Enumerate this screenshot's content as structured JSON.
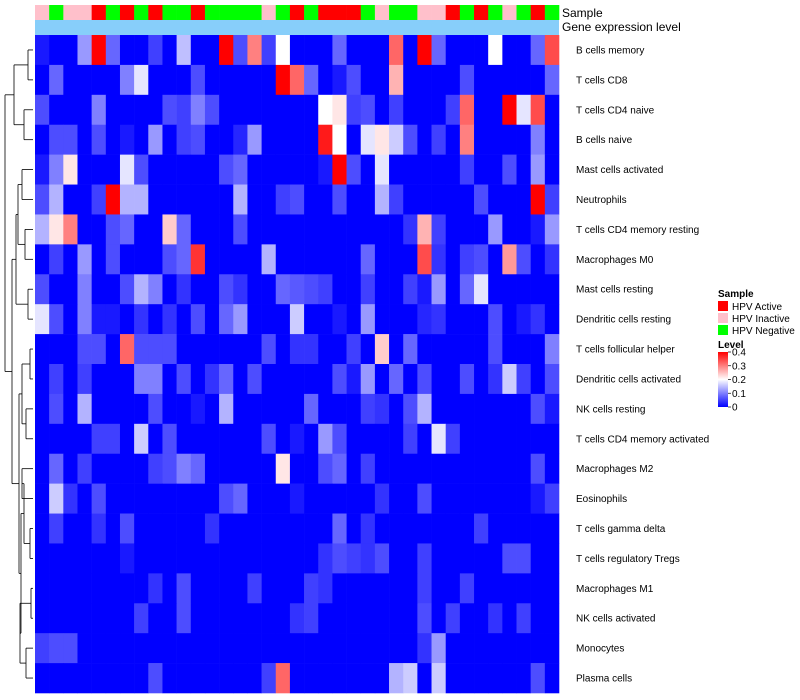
{
  "chart_data": {
    "type": "heatmap",
    "annotation_tracks": [
      {
        "label": "Sample"
      },
      {
        "label": "Gene expression level"
      }
    ],
    "sample_groups": [
      "Inactive",
      "Negative",
      "Inactive",
      "Inactive",
      "Active",
      "Negative",
      "Active",
      "Negative",
      "Active",
      "Negative",
      "Negative",
      "Active",
      "Negative",
      "Negative",
      "Negative",
      "Negative",
      "Inactive",
      "Negative",
      "Active",
      "Negative",
      "Active",
      "Active",
      "Active",
      "Negative",
      "Inactive",
      "Negative",
      "Negative",
      "Inactive",
      "Inactive",
      "Active",
      "Negative",
      "Active",
      "Negative",
      "Inactive",
      "Negative",
      "Active",
      "Negative"
    ],
    "rows": [
      "B cells memory",
      "T cells CD8",
      "T cells CD4 naive",
      "B cells naive",
      "Mast cells activated",
      "Neutrophils",
      "T cells CD4 memory resting",
      "Macrophages M0",
      "Mast cells resting",
      "Dendritic cells resting",
      "T cells follicular helper",
      "Dendritic cells activated",
      "NK cells resting",
      "T cells CD4 memory activated",
      "Macrophages M2",
      "Eosinophils",
      "T cells gamma delta",
      "T cells regulatory  Tregs",
      "Macrophages M1",
      "NK cells activated",
      "Monocytes",
      "Plasma cells"
    ],
    "values": [
      [
        0.02,
        0.0,
        0.0,
        0.12,
        0.4,
        0.08,
        0.0,
        0.0,
        0.05,
        0.0,
        0.15,
        0.0,
        0.0,
        0.4,
        0.06,
        0.3,
        0.05,
        0.2,
        0.0,
        0.0,
        0.0,
        0.08,
        0.0,
        0.0,
        0.0,
        0.32,
        0.0,
        0.4,
        0.08,
        0.0,
        0.0,
        0.0,
        0.2,
        0.0,
        0.0,
        0.08,
        0.34
      ],
      [
        0.0,
        0.08,
        0.0,
        0.0,
        0.0,
        0.0,
        0.1,
        0.18,
        0.0,
        0.0,
        0.0,
        0.06,
        0.0,
        0.0,
        0.0,
        0.0,
        0.0,
        0.4,
        0.32,
        0.08,
        0.0,
        0.02,
        0.06,
        0.0,
        0.0,
        0.26,
        0.0,
        0.0,
        0.0,
        0.0,
        0.06,
        0.0,
        0.0,
        0.0,
        0.0,
        0.0,
        0.08
      ],
      [
        0.06,
        0.0,
        0.0,
        0.0,
        0.1,
        0.0,
        0.0,
        0.0,
        0.0,
        0.06,
        0.05,
        0.1,
        0.06,
        0.0,
        0.0,
        0.0,
        0.0,
        0.0,
        0.0,
        0.0,
        0.2,
        0.22,
        0.05,
        0.06,
        0.0,
        0.05,
        0.0,
        0.0,
        0.0,
        0.05,
        0.32,
        0.0,
        0.0,
        0.4,
        0.18,
        0.34,
        0.0
      ],
      [
        0.0,
        0.06,
        0.06,
        0.0,
        0.06,
        0.0,
        0.02,
        0.0,
        0.12,
        0.0,
        0.05,
        0.06,
        0.0,
        0.0,
        0.03,
        0.12,
        0.0,
        0.0,
        0.0,
        0.0,
        0.38,
        0.2,
        0.0,
        0.18,
        0.22,
        0.16,
        0.06,
        0.0,
        0.05,
        0.0,
        0.3,
        0.0,
        0.0,
        0.0,
        0.0,
        0.1,
        0.0
      ],
      [
        0.02,
        0.1,
        0.22,
        0.0,
        0.0,
        0.0,
        0.18,
        0.06,
        0.0,
        0.0,
        0.0,
        0.0,
        0.0,
        0.06,
        0.08,
        0.0,
        0.0,
        0.0,
        0.0,
        0.0,
        0.02,
        0.4,
        0.06,
        0.0,
        0.18,
        0.0,
        0.0,
        0.0,
        0.0,
        0.0,
        0.05,
        0.0,
        0.0,
        0.06,
        0.0,
        0.12,
        0.0
      ],
      [
        0.06,
        0.14,
        0.0,
        0.0,
        0.05,
        0.4,
        0.14,
        0.14,
        0.0,
        0.0,
        0.0,
        0.0,
        0.0,
        0.0,
        0.14,
        0.0,
        0.0,
        0.05,
        0.06,
        0.0,
        0.0,
        0.06,
        0.0,
        0.0,
        0.14,
        0.05,
        0.0,
        0.0,
        0.0,
        0.0,
        0.0,
        0.06,
        0.0,
        0.0,
        0.0,
        0.4,
        0.05
      ],
      [
        0.14,
        0.22,
        0.3,
        0.0,
        0.0,
        0.06,
        0.08,
        0.0,
        0.0,
        0.24,
        0.08,
        0.0,
        0.0,
        0.0,
        0.06,
        0.0,
        0.0,
        0.0,
        0.0,
        0.0,
        0.0,
        0.0,
        0.0,
        0.0,
        0.0,
        0.0,
        0.04,
        0.26,
        0.05,
        0.0,
        0.0,
        0.0,
        0.12,
        0.0,
        0.0,
        0.02,
        0.12
      ],
      [
        0.0,
        0.05,
        0.0,
        0.12,
        0.0,
        0.06,
        0.0,
        0.0,
        0.0,
        0.06,
        0.08,
        0.36,
        0.0,
        0.0,
        0.0,
        0.0,
        0.14,
        0.0,
        0.0,
        0.0,
        0.0,
        0.0,
        0.0,
        0.08,
        0.0,
        0.0,
        0.0,
        0.34,
        0.04,
        0.0,
        0.05,
        0.06,
        0.0,
        0.28,
        0.06,
        0.0,
        0.04
      ],
      [
        0.06,
        0.0,
        0.0,
        0.1,
        0.0,
        0.0,
        0.06,
        0.14,
        0.1,
        0.0,
        0.04,
        0.0,
        0.0,
        0.06,
        0.04,
        0.0,
        0.0,
        0.08,
        0.07,
        0.06,
        0.05,
        0.0,
        0.0,
        0.05,
        0.0,
        0.0,
        0.05,
        0.02,
        0.12,
        0.0,
        0.08,
        0.18,
        0.0,
        0.0,
        0.0,
        0.0,
        0.0
      ],
      [
        0.18,
        0.06,
        0.0,
        0.1,
        0.02,
        0.02,
        0.0,
        0.04,
        0.0,
        0.04,
        0.0,
        0.06,
        0.0,
        0.08,
        0.12,
        0.0,
        0.0,
        0.0,
        0.16,
        0.0,
        0.0,
        0.02,
        0.0,
        0.12,
        0.0,
        0.0,
        0.0,
        0.03,
        0.04,
        0.0,
        0.0,
        0.0,
        0.06,
        0.0,
        0.02,
        0.04,
        0.0
      ],
      [
        0.0,
        0.0,
        0.0,
        0.06,
        0.06,
        0.0,
        0.32,
        0.06,
        0.06,
        0.06,
        0.0,
        0.0,
        0.0,
        0.0,
        0.0,
        0.0,
        0.06,
        0.0,
        0.04,
        0.04,
        0.0,
        0.0,
        0.05,
        0.0,
        0.24,
        0.0,
        0.08,
        0.0,
        0.0,
        0.0,
        0.0,
        0.0,
        0.06,
        0.0,
        0.0,
        0.0,
        0.1
      ],
      [
        0.0,
        0.05,
        0.0,
        0.05,
        0.0,
        0.0,
        0.0,
        0.1,
        0.1,
        0.0,
        0.06,
        0.0,
        0.04,
        0.08,
        0.0,
        0.06,
        0.0,
        0.0,
        0.0,
        0.0,
        0.0,
        0.06,
        0.02,
        0.12,
        0.0,
        0.08,
        0.0,
        0.06,
        0.0,
        0.0,
        0.06,
        0.0,
        0.04,
        0.16,
        0.05,
        0.0,
        0.06
      ],
      [
        0.0,
        0.06,
        0.0,
        0.14,
        0.0,
        0.0,
        0.0,
        0.0,
        0.06,
        0.0,
        0.0,
        0.02,
        0.0,
        0.14,
        0.0,
        0.0,
        0.0,
        0.0,
        0.0,
        0.08,
        0.0,
        0.0,
        0.0,
        0.05,
        0.04,
        0.0,
        0.06,
        0.14,
        0.0,
        0.0,
        0.0,
        0.0,
        0.0,
        0.0,
        0.0,
        0.06,
        0.02
      ],
      [
        0.0,
        0.0,
        0.0,
        0.0,
        0.05,
        0.05,
        0.0,
        0.16,
        0.0,
        0.06,
        0.0,
        0.0,
        0.0,
        0.0,
        0.0,
        0.0,
        0.06,
        0.0,
        0.02,
        0.0,
        0.12,
        0.06,
        0.0,
        0.0,
        0.0,
        0.0,
        0.05,
        0.0,
        0.18,
        0.05,
        0.0,
        0.0,
        0.0,
        0.0,
        0.0,
        0.0,
        0.0
      ],
      [
        0.0,
        0.08,
        0.0,
        0.05,
        0.0,
        0.0,
        0.0,
        0.0,
        0.05,
        0.06,
        0.1,
        0.08,
        0.0,
        0.0,
        0.0,
        0.0,
        0.0,
        0.22,
        0.0,
        0.0,
        0.06,
        0.08,
        0.0,
        0.05,
        0.0,
        0.0,
        0.0,
        0.0,
        0.0,
        0.0,
        0.0,
        0.0,
        0.0,
        0.0,
        0.0,
        0.06,
        0.0
      ],
      [
        0.0,
        0.16,
        0.04,
        0.0,
        0.06,
        0.0,
        0.0,
        0.0,
        0.0,
        0.0,
        0.0,
        0.0,
        0.0,
        0.06,
        0.08,
        0.0,
        0.0,
        0.0,
        0.02,
        0.0,
        0.0,
        0.0,
        0.0,
        0.0,
        0.04,
        0.0,
        0.0,
        0.06,
        0.0,
        0.0,
        0.0,
        0.0,
        0.0,
        0.0,
        0.0,
        0.02,
        0.05
      ],
      [
        0.0,
        0.05,
        0.0,
        0.0,
        0.04,
        0.0,
        0.06,
        0.0,
        0.0,
        0.0,
        0.0,
        0.0,
        0.04,
        0.0,
        0.0,
        0.0,
        0.0,
        0.0,
        0.0,
        0.0,
        0.0,
        0.08,
        0.0,
        0.04,
        0.0,
        0.0,
        0.0,
        0.0,
        0.0,
        0.0,
        0.0,
        0.05,
        0.0,
        0.0,
        0.0,
        0.0,
        0.0
      ],
      [
        0.0,
        0.0,
        0.0,
        0.0,
        0.0,
        0.0,
        0.02,
        0.0,
        0.0,
        0.0,
        0.0,
        0.0,
        0.0,
        0.0,
        0.0,
        0.0,
        0.0,
        0.0,
        0.0,
        0.0,
        0.04,
        0.06,
        0.05,
        0.04,
        0.06,
        0.0,
        0.0,
        0.05,
        0.0,
        0.0,
        0.0,
        0.0,
        0.0,
        0.06,
        0.06,
        0.0,
        0.0
      ],
      [
        0.0,
        0.0,
        0.0,
        0.0,
        0.0,
        0.0,
        0.0,
        0.0,
        0.04,
        0.0,
        0.06,
        0.0,
        0.0,
        0.0,
        0.0,
        0.05,
        0.0,
        0.0,
        0.0,
        0.05,
        0.04,
        0.0,
        0.0,
        0.0,
        0.0,
        0.0,
        0.0,
        0.05,
        0.0,
        0.0,
        0.05,
        0.0,
        0.0,
        0.0,
        0.0,
        0.0,
        0.0
      ],
      [
        0.0,
        0.0,
        0.0,
        0.0,
        0.0,
        0.0,
        0.0,
        0.05,
        0.0,
        0.0,
        0.06,
        0.0,
        0.0,
        0.0,
        0.0,
        0.0,
        0.0,
        0.0,
        0.04,
        0.05,
        0.0,
        0.0,
        0.0,
        0.0,
        0.0,
        0.0,
        0.0,
        0.06,
        0.0,
        0.05,
        0.0,
        0.0,
        0.04,
        0.0,
        0.05,
        0.0,
        0.0
      ],
      [
        0.05,
        0.06,
        0.06,
        0.0,
        0.0,
        0.0,
        0.0,
        0.0,
        0.0,
        0.0,
        0.0,
        0.0,
        0.0,
        0.0,
        0.0,
        0.0,
        0.0,
        0.0,
        0.0,
        0.0,
        0.0,
        0.0,
        0.0,
        0.0,
        0.0,
        0.0,
        0.0,
        0.04,
        0.12,
        0.0,
        0.0,
        0.0,
        0.0,
        0.0,
        0.0,
        0.0,
        0.0
      ],
      [
        0.0,
        0.0,
        0.0,
        0.0,
        0.0,
        0.0,
        0.0,
        0.0,
        0.06,
        0.0,
        0.0,
        0.0,
        0.0,
        0.0,
        0.0,
        0.0,
        0.05,
        0.32,
        0.0,
        0.0,
        0.0,
        0.0,
        0.0,
        0.0,
        0.0,
        0.14,
        0.16,
        0.0,
        0.16,
        0.0,
        0.0,
        0.0,
        0.0,
        0.0,
        0.0,
        0.06,
        0.0
      ]
    ],
    "color_scale": {
      "min": 0,
      "max": 0.4,
      "stops": [
        {
          "value": 0,
          "color": "#0000FF"
        },
        {
          "value": 0.2,
          "color": "#FFFFFF"
        },
        {
          "value": 0.4,
          "color": "#FF0000"
        }
      ]
    },
    "legend_sample": {
      "title": "Sample",
      "items": [
        {
          "key": "Active",
          "label": "HPV Active",
          "color": "#FF0000"
        },
        {
          "key": "Inactive",
          "label": "HPV Inactive",
          "color": "#FFC0CB"
        },
        {
          "key": "Negative",
          "label": "HPV Negative",
          "color": "#00FF00"
        }
      ]
    },
    "legend_level": {
      "title": "Level",
      "ticks": [
        "0.4",
        "0.3",
        "0.2",
        "0.1",
        "0"
      ]
    },
    "expression_track_color": "#87CEFA",
    "row_dendrogram": true
  }
}
